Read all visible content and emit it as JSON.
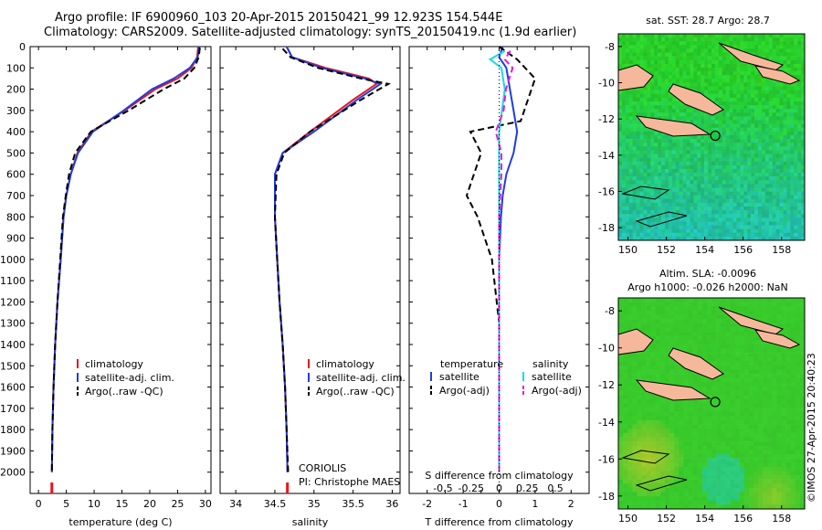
{
  "header": {
    "line1": "Argo profile: IF 6900960_103 20-Apr-2015 20150421_99 12.923S 154.544E",
    "line2": "Climatology: CARS2009. Satellite-adjusted climatology: synTS_20150419.nc (1.9d earlier)"
  },
  "credit": "©IMOS 27-Apr-2015 20:40:23",
  "colors": {
    "climatology": "#e8141e",
    "satellite": "#1f3de0",
    "argo": "#000000",
    "sat_salinity": "#19d9e6",
    "argo_salinity_adj": "#e619d9"
  },
  "chart_data": [
    {
      "type": "line",
      "id": "temperature",
      "xlabel": "temperature (deg C)",
      "ylabel": "",
      "xlim": [
        -1.5,
        31
      ],
      "ylim": [
        2100,
        0
      ],
      "xticks": [
        0,
        5,
        10,
        15,
        20,
        25,
        30
      ],
      "yticks": [
        0,
        100,
        200,
        300,
        400,
        500,
        600,
        700,
        800,
        900,
        1000,
        1100,
        1200,
        1300,
        1400,
        1500,
        1600,
        1700,
        1800,
        1900,
        2000
      ],
      "legend": [
        "climatology",
        "satellite-adj. clim.",
        "Argo(..raw -QC)"
      ],
      "series": [
        {
          "key": "climatology",
          "style": "solid",
          "x": [
            28.7,
            28.5,
            27.5,
            25.0,
            21.0,
            15.5,
            9.5,
            7.0,
            5.8,
            5.0,
            4.5,
            4.0,
            3.4,
            3.0,
            2.7,
            2.5,
            2.4
          ],
          "y": [
            0,
            50,
            100,
            150,
            200,
            300,
            400,
            500,
            600,
            700,
            800,
            1000,
            1200,
            1400,
            1600,
            1800,
            2000
          ]
        },
        {
          "key": "satellite",
          "style": "solid",
          "x": [
            28.9,
            28.6,
            27.2,
            24.3,
            20.4,
            15.3,
            9.8,
            7.1,
            5.8,
            5.0,
            4.5,
            4.0,
            3.4,
            3.0,
            2.7,
            2.5,
            2.4
          ],
          "y": [
            0,
            50,
            100,
            150,
            200,
            300,
            400,
            500,
            600,
            700,
            800,
            1000,
            1200,
            1400,
            1600,
            1800,
            2000
          ]
        },
        {
          "key": "argo",
          "style": "dashed",
          "x": [
            29.0,
            28.8,
            28.0,
            26.2,
            22.5,
            16.2,
            9.4,
            6.6,
            5.5,
            4.9,
            4.4,
            3.9,
            3.4,
            3.0,
            2.7,
            2.5,
            2.4
          ],
          "y": [
            5,
            50,
            100,
            150,
            200,
            300,
            400,
            500,
            600,
            700,
            800,
            1000,
            1200,
            1400,
            1600,
            1800,
            2000
          ]
        }
      ]
    },
    {
      "type": "line",
      "id": "salinity",
      "xlabel": "salinity",
      "ylabel": "",
      "xlim": [
        33.8,
        36.1
      ],
      "ylim": [
        2100,
        0
      ],
      "xticks": [
        34,
        34.5,
        35,
        35.5,
        36
      ],
      "legend": [
        "climatology",
        "satellite-adj. clim.",
        "Argo(..raw -QC)"
      ],
      "annotation": [
        "CORIOLIS",
        "PI: Christophe MAES"
      ],
      "series": [
        {
          "key": "climatology",
          "style": "solid",
          "x": [
            34.65,
            34.72,
            35.15,
            35.7,
            35.8,
            35.5,
            34.95,
            34.6,
            34.5,
            34.5,
            34.53,
            34.56,
            34.6,
            34.63,
            34.65,
            34.66
          ],
          "y": [
            0,
            50,
            100,
            150,
            175,
            250,
            400,
            500,
            600,
            800,
            1000,
            1200,
            1400,
            1600,
            1800,
            2000
          ]
        },
        {
          "key": "satellite",
          "style": "solid",
          "x": [
            34.65,
            34.72,
            35.1,
            35.65,
            35.85,
            35.55,
            35.0,
            34.6,
            34.5,
            34.5,
            34.53,
            34.56,
            34.6,
            34.63,
            34.65,
            34.66
          ],
          "y": [
            0,
            50,
            100,
            150,
            175,
            250,
            400,
            500,
            600,
            800,
            1000,
            1200,
            1400,
            1600,
            1800,
            2000
          ]
        },
        {
          "key": "argo",
          "style": "dashed",
          "x": [
            34.6,
            34.7,
            35.05,
            35.6,
            35.95,
            35.6,
            34.95,
            34.62,
            34.52,
            34.5,
            34.53,
            34.56,
            34.6,
            34.63,
            34.65,
            34.67
          ],
          "y": [
            10,
            50,
            100,
            150,
            175,
            250,
            400,
            500,
            600,
            800,
            1000,
            1200,
            1400,
            1600,
            1800,
            2000
          ]
        }
      ]
    },
    {
      "type": "line",
      "id": "difference",
      "xlabel": "T difference from climatology",
      "ylabel": "",
      "xlim_top": [
        -0.8,
        0.8
      ],
      "xlabel_top": "S difference from climatology",
      "xticks_top": [
        -0.5,
        -0.25,
        0,
        0.25,
        0.5
      ],
      "xlim": [
        -2.5,
        2.5
      ],
      "ylim": [
        2100,
        0
      ],
      "xticks": [
        -2,
        -1.5,
        -1,
        -0.5,
        0,
        0.5,
        1,
        1.5,
        2
      ],
      "xticklabels": [
        "-2",
        "",
        "-1",
        "",
        "0",
        "",
        "1",
        "",
        "2"
      ],
      "legend_left_title": "temperature",
      "legend_right_title": "salinity",
      "legend": [
        "satellite",
        "Argo(-adj)",
        "satellite",
        "Argo(-adj)"
      ],
      "series": [
        {
          "key": "satellite",
          "style": "solid",
          "x": [
            0.1,
            0.0,
            0.2,
            0.3,
            0.4,
            0.5,
            0.4,
            0.2,
            0.1,
            0.05,
            0.0,
            0.0,
            0.0,
            0.0
          ],
          "y": [
            0,
            50,
            100,
            200,
            300,
            400,
            500,
            600,
            700,
            800,
            1000,
            1300,
            1600,
            2000
          ]
        },
        {
          "key": "argo",
          "style": "dashed",
          "x": [
            0.0,
            0.5,
            1.0,
            0.8,
            0.6,
            -0.8,
            -0.5,
            -0.7,
            -0.9,
            -0.6,
            -0.2,
            0.0,
            0.0,
            0.0
          ],
          "y": [
            0,
            60,
            150,
            250,
            350,
            400,
            500,
            600,
            700,
            800,
            1000,
            1300,
            1600,
            2000
          ]
        },
        {
          "key": "sat_salinity",
          "style": "solid",
          "x": [
            0.05,
            -0.08,
            0.02,
            0.05,
            0.0,
            0.0,
            0.0,
            0.0,
            0.0,
            0.0
          ],
          "y": [
            20,
            60,
            100,
            200,
            400,
            600,
            800,
            1200,
            1600,
            2000
          ]
        },
        {
          "key": "argo_salinity_adj",
          "style": "dashed",
          "x": [
            0.1,
            0.05,
            0.12,
            0.06,
            0.04,
            -0.03,
            0.02,
            0.02,
            0.0,
            0.0,
            0.0
          ],
          "y": [
            20,
            60,
            100,
            200,
            300,
            400,
            500,
            600,
            800,
            1200,
            2000
          ]
        }
      ]
    },
    {
      "type": "heatmap",
      "id": "sst_map",
      "title": "sat. SST: 28.7 Argo: 28.7",
      "xticks": [
        "150",
        "152",
        "154",
        "156",
        "158"
      ],
      "yticks": [
        "-8",
        "-10",
        "-12",
        "-14",
        "-16",
        "-18"
      ]
    },
    {
      "type": "heatmap",
      "id": "sla_map",
      "title": "Altim. SLA: -0.0096",
      "subtitle": "Argo h1000: -0.026 h2000: NaN",
      "xticks": [
        "150",
        "152",
        "154",
        "156",
        "158"
      ],
      "yticks": [
        "-8",
        "-10",
        "-12",
        "-14",
        "-16",
        "-18"
      ]
    }
  ]
}
